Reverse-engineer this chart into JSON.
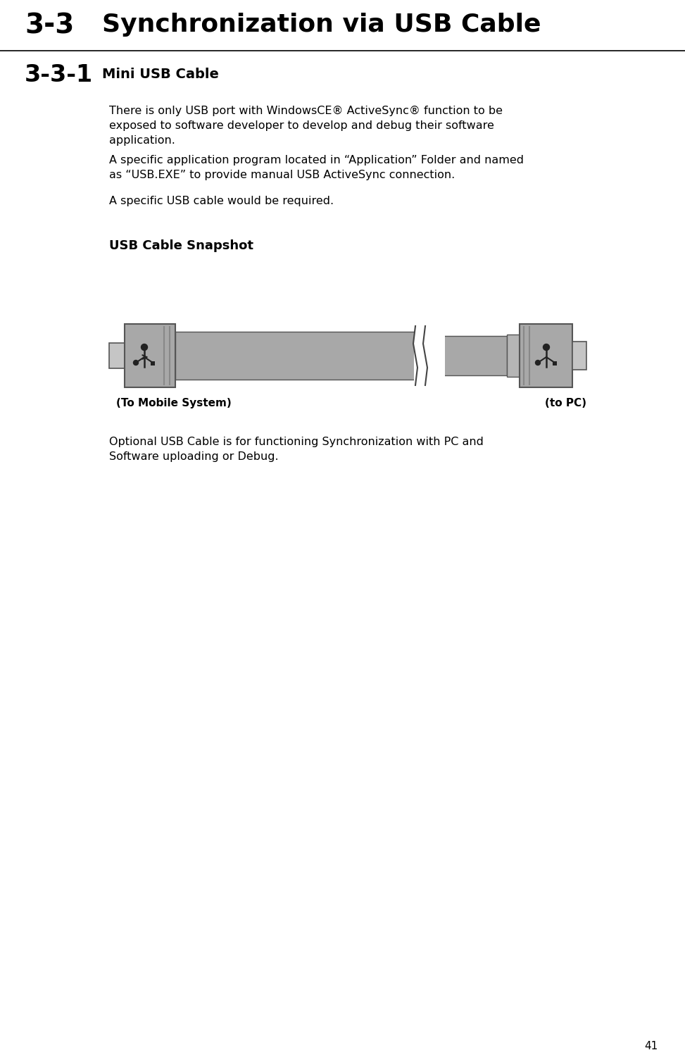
{
  "bg_color": "#ffffff",
  "title_33": "3-3",
  "title_33_text": "Synchronization via USB Cable",
  "title_331": "3-3-1",
  "title_331_text": "Mini USB Cable",
  "para1_line1": "There is only USB port with WindowsCE® ActiveSync® function to be",
  "para1_line2": "exposed to software developer to develop and debug their software",
  "para1_line3": "application.",
  "para2_line1": "A specific application program located in “Application” Folder and named",
  "para2_line2": "as “USB.EXE” to provide manual USB ActiveSync connection.",
  "para3": "A specific USB cable would be required.",
  "snapshot_label": "USB Cable Snapshot",
  "label_left": "(To Mobile System)",
  "label_right": "(to PC)",
  "para4_line1": "Optional USB Cable is for functioning Synchronization with PC and",
  "para4_line2": "Software uploading or Debug.",
  "page_number": "41",
  "cable_gray": "#a8a8a8",
  "cable_gray_dark": "#888888",
  "connector_gray": "#a0a0a0",
  "connector_border": "#555555",
  "tip_gray": "#b8b8b8"
}
